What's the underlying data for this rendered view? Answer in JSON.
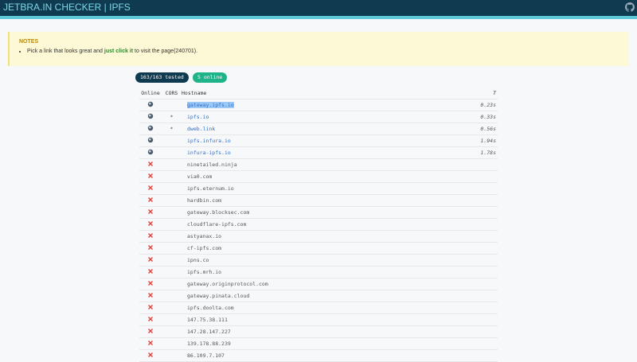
{
  "header": {
    "title": "JETBRA.IN CHECKER | IPFS"
  },
  "notes": {
    "title": "NOTES",
    "items": [
      {
        "before": "Pick a link that looks great and",
        "strong": "just click it",
        "after": "to visit the page(240701)."
      }
    ]
  },
  "badges": {
    "tested": "163/163 tested",
    "online": "5 online"
  },
  "table": {
    "columns": [
      "Online",
      "CORS",
      "Hostname",
      "T"
    ],
    "rows": [
      {
        "online": true,
        "hostname": "gateway.ipfs.io",
        "time": "0.23s",
        "selected": true
      },
      {
        "online": true,
        "cors": "*",
        "hostname": "ipfs.io",
        "time": "0.33s"
      },
      {
        "online": true,
        "cors": "*",
        "hostname": "dweb.link",
        "time": "0.56s"
      },
      {
        "online": true,
        "hostname": "ipfs.infura.io",
        "time": "1.94s"
      },
      {
        "online": true,
        "hostname": "infura-ipfs.io",
        "time": "1.78s"
      },
      {
        "online": false,
        "hostname": "ninetailed.ninja"
      },
      {
        "online": false,
        "hostname": "via0.com"
      },
      {
        "online": false,
        "hostname": "ipfs.eternum.io"
      },
      {
        "online": false,
        "hostname": "hardbin.com"
      },
      {
        "online": false,
        "hostname": "gateway.blocksec.com"
      },
      {
        "online": false,
        "hostname": "cloudflare-ipfs.com"
      },
      {
        "online": false,
        "hostname": "astyanax.io"
      },
      {
        "online": false,
        "hostname": "cf-ipfs.com"
      },
      {
        "online": false,
        "hostname": "ipns.co"
      },
      {
        "online": false,
        "hostname": "ipfs.mrh.io"
      },
      {
        "online": false,
        "hostname": "gateway.originprotocol.com"
      },
      {
        "online": false,
        "hostname": "gateway.pinata.cloud"
      },
      {
        "online": false,
        "hostname": "ipfs.doolta.com"
      },
      {
        "online": false,
        "hostname": "147.75.38.111"
      },
      {
        "online": false,
        "hostname": "147.28.147.227"
      },
      {
        "online": false,
        "hostname": "139.178.88.239"
      },
      {
        "online": false,
        "hostname": "86.109.7.107"
      }
    ]
  }
}
